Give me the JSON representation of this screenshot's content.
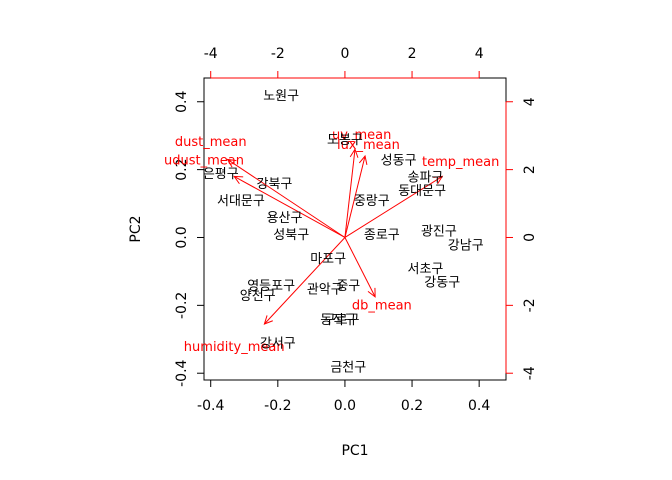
{
  "chart_data": {
    "type": "scatter",
    "subtype": "biplot",
    "xlabel": "PC1",
    "ylabel": "PC2",
    "xlim": [
      -0.42,
      0.48
    ],
    "ylim": [
      -0.42,
      0.47
    ],
    "x_ticks": [
      "-0.4",
      "-0.2",
      "0.0",
      "0.2",
      "0.4"
    ],
    "y_ticks": [
      "-0.4",
      "-0.2",
      "0.0",
      "0.2",
      "0.4"
    ],
    "top_ticks": [
      "-4",
      "-2",
      "0",
      "2",
      "4"
    ],
    "right_ticks": [
      "-4",
      "-2",
      "0",
      "2",
      "4"
    ],
    "secondary_lim": [
      -4.2,
      4.8
    ],
    "secondary_ylim": [
      -4.2,
      4.7
    ],
    "points": [
      {
        "label": "노원구",
        "x": -0.19,
        "y": 0.42
      },
      {
        "label": "도봉구",
        "x": 0.0,
        "y": 0.29
      },
      {
        "label": "성동구",
        "x": 0.16,
        "y": 0.23
      },
      {
        "label": "송파구",
        "x": 0.24,
        "y": 0.18
      },
      {
        "label": "동대문구",
        "x": 0.23,
        "y": 0.14
      },
      {
        "label": "은평구",
        "x": -0.37,
        "y": 0.19
      },
      {
        "label": "강북구",
        "x": -0.21,
        "y": 0.16
      },
      {
        "label": "서대문구",
        "x": -0.31,
        "y": 0.11
      },
      {
        "label": "중랑구",
        "x": 0.08,
        "y": 0.11
      },
      {
        "label": "용산구",
        "x": -0.18,
        "y": 0.06
      },
      {
        "label": "성북구",
        "x": -0.16,
        "y": 0.01
      },
      {
        "label": "종로구",
        "x": 0.11,
        "y": 0.01
      },
      {
        "label": "광진구",
        "x": 0.28,
        "y": 0.02
      },
      {
        "label": "강남구",
        "x": 0.36,
        "y": -0.02
      },
      {
        "label": "마포구",
        "x": -0.05,
        "y": -0.06
      },
      {
        "label": "서초구",
        "x": 0.24,
        "y": -0.09
      },
      {
        "label": "강동구",
        "x": 0.29,
        "y": -0.13
      },
      {
        "label": "영등포구",
        "x": -0.22,
        "y": -0.14
      },
      {
        "label": "관악구",
        "x": -0.06,
        "y": -0.15
      },
      {
        "label": "중구",
        "x": 0.01,
        "y": -0.14
      },
      {
        "label": "양천구",
        "x": -0.26,
        "y": -0.17
      },
      {
        "label": "동작구",
        "x": -0.02,
        "y": -0.24
      },
      {
        "label": "구로구",
        "x": -0.01,
        "y": -0.24
      },
      {
        "label": "강서구",
        "x": -0.2,
        "y": -0.31
      },
      {
        "label": "금천구",
        "x": 0.01,
        "y": -0.38
      }
    ],
    "loadings": [
      {
        "label": "dust_mean",
        "x": -3.5,
        "y": 2.3,
        "label_x": -4.0,
        "label_y": 2.85
      },
      {
        "label": "udust_mean",
        "x": -3.3,
        "y": 1.8,
        "label_x": -4.2,
        "label_y": 2.3
      },
      {
        "label": "lux_mean",
        "x": 0.3,
        "y": 2.6,
        "label_x": 0.7,
        "label_y": 2.75
      },
      {
        "label": "uv_mean",
        "x": 0.6,
        "y": 2.4,
        "label_x": 0.5,
        "label_y": 3.05
      },
      {
        "label": "temp_mean",
        "x": 2.9,
        "y": 1.8,
        "label_x": 3.45,
        "label_y": 2.25
      },
      {
        "label": "db_mean",
        "x": 0.9,
        "y": -1.75,
        "label_x": 1.1,
        "label_y": -1.98
      },
      {
        "label": "humidity_mean",
        "x": -2.4,
        "y": -2.55,
        "label_x": -3.3,
        "label_y": -3.2
      }
    ]
  }
}
